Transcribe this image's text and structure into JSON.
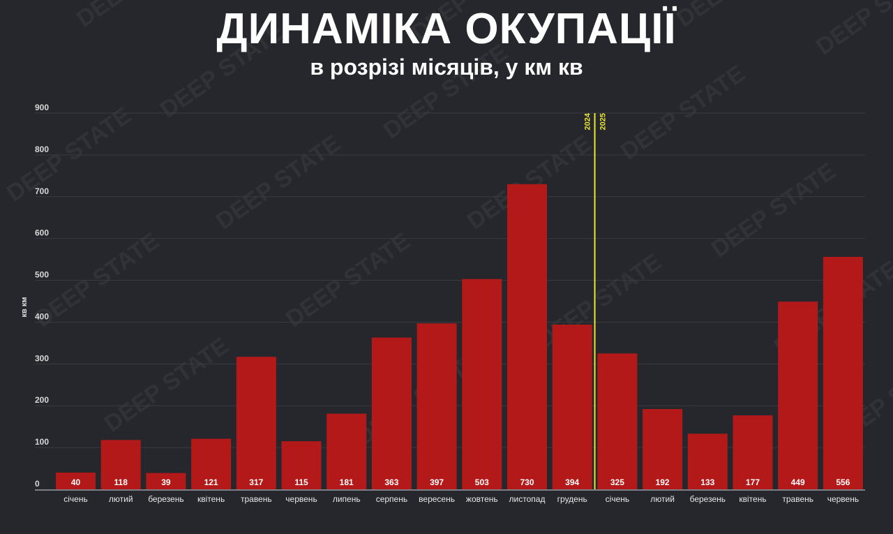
{
  "chart_data": {
    "type": "bar",
    "title": "ДИНАМІКА ОКУПАЦІЇ",
    "subtitle": "в розрізі місяців, у км кв",
    "ylabel": "кв км",
    "xlabel": "",
    "ylim": [
      0,
      900
    ],
    "yticks": [
      0,
      100,
      200,
      300,
      400,
      500,
      600,
      700,
      800,
      900
    ],
    "grid": true,
    "categories": [
      "січень",
      "лютий",
      "березень",
      "квітень",
      "травень",
      "червень",
      "липень",
      "серпень",
      "вересень",
      "жовтень",
      "листопад",
      "грудень",
      "січень",
      "лютий",
      "березень",
      "квітень",
      "травень",
      "червень"
    ],
    "values": [
      40,
      118,
      39,
      121,
      317,
      115,
      181,
      363,
      397,
      503,
      730,
      394,
      325,
      192,
      133,
      177,
      449,
      556
    ],
    "divider": {
      "after_index": 11,
      "left_label": "2024",
      "right_label": "2025",
      "color": "#e8e832"
    },
    "bar_color": "#b4191a",
    "watermark": "DEEP STATE"
  }
}
